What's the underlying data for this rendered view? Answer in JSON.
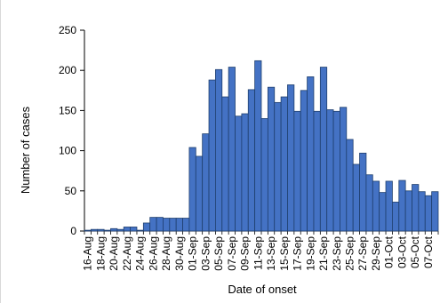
{
  "chart_data": {
    "type": "bar",
    "title": "",
    "xlabel": "Date of onset",
    "ylabel": "Number of cases",
    "ylim": [
      0,
      250
    ],
    "yticks": [
      0,
      50,
      100,
      150,
      200,
      250
    ],
    "grid": false,
    "bar_color": "#4472c4",
    "bar_edge_color": "#1f3f6e",
    "categories": [
      "16-Aug",
      "17-Aug",
      "18-Aug",
      "19-Aug",
      "20-Aug",
      "21-Aug",
      "22-Aug",
      "23-Aug",
      "24-Aug",
      "25-Aug",
      "26-Aug",
      "27-Aug",
      "28-Aug",
      "29-Aug",
      "30-Aug",
      "31-Aug",
      "01-Sep",
      "02-Sep",
      "03-Sep",
      "04-Sep",
      "05-Sep",
      "06-Sep",
      "07-Sep",
      "08-Sep",
      "09-Sep",
      "10-Sep",
      "11-Sep",
      "12-Sep",
      "13-Sep",
      "14-Sep",
      "15-Sep",
      "16-Sep",
      "17-Sep",
      "18-Sep",
      "19-Sep",
      "20-Sep",
      "21-Sep",
      "22-Sep",
      "23-Sep",
      "24-Sep",
      "25-Sep",
      "26-Sep",
      "27-Sep",
      "28-Sep",
      "29-Sep",
      "30-Sep",
      "01-Oct",
      "02-Oct",
      "03-Oct",
      "04-Oct",
      "05-Oct",
      "06-Oct",
      "07-Oct",
      "08-Oct"
    ],
    "values": [
      1,
      2,
      2,
      1,
      3,
      2,
      5,
      5,
      1,
      10,
      17,
      17,
      16,
      16,
      16,
      16,
      104,
      93,
      121,
      188,
      201,
      167,
      204,
      143,
      146,
      176,
      212,
      140,
      179,
      160,
      167,
      182,
      149,
      175,
      192,
      149,
      204,
      151,
      149,
      154,
      114,
      83,
      97,
      70,
      62,
      48,
      62,
      36,
      63,
      50,
      58,
      49,
      44,
      49
    ],
    "tick_labels": [
      "16-Aug",
      "18-Aug",
      "20-Aug",
      "22-Aug",
      "24-Aug",
      "26-Aug",
      "28-Aug",
      "30-Aug",
      "01-Sep",
      "03-Sep",
      "05-Sep",
      "07-Sep",
      "09-Sep",
      "11-Sep",
      "13-Sep",
      "15-Sep",
      "17-Sep",
      "19-Sep",
      "21-Sep",
      "23-Sep",
      "25-Sep",
      "27-Sep",
      "29-Sep",
      "01-Oct",
      "03-Oct",
      "05-Oct",
      "07-Oct"
    ]
  }
}
